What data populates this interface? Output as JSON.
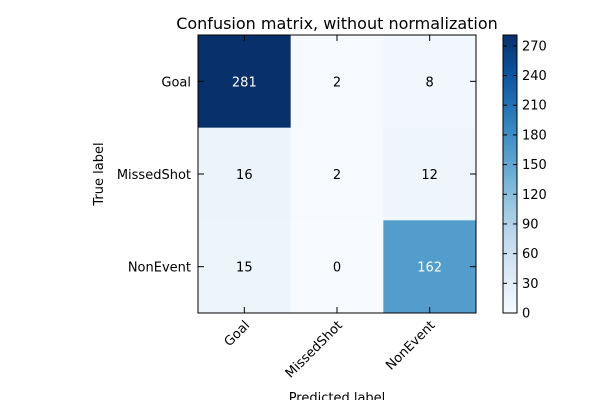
{
  "chart_data": {
    "type": "heatmap",
    "title": "Confusion matrix, without normalization",
    "xlabel": "Predicted label",
    "ylabel": "True label",
    "x_categories": [
      "Goal",
      "MissedShot",
      "NonEvent"
    ],
    "y_categories": [
      "Goal",
      "MissedShot",
      "NonEvent"
    ],
    "matrix": [
      [
        281,
        2,
        8
      ],
      [
        16,
        2,
        12
      ],
      [
        15,
        0,
        162
      ]
    ],
    "colormap": "Blues",
    "colorbar": {
      "min": 0,
      "max": 281,
      "ticks": [
        0,
        30,
        60,
        90,
        120,
        150,
        180,
        210,
        240,
        270
      ]
    },
    "x_tick_rotation_deg": 45
  }
}
